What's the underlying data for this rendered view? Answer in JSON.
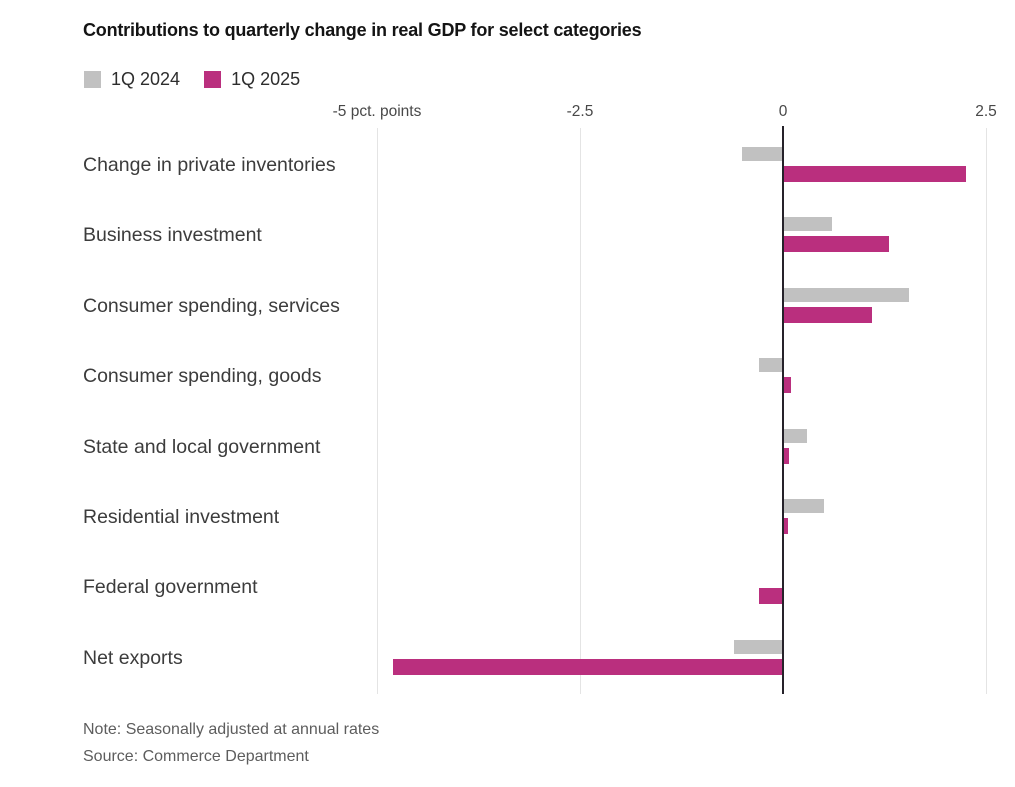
{
  "title": "Contributions to quarterly change in real GDP for select categories",
  "chart_data": {
    "type": "bar",
    "orientation": "horizontal",
    "title": "Contributions to quarterly change in real GDP for select categories",
    "xlabel": "pct. points",
    "ylabel": "",
    "categories": [
      "Change in private inventories",
      "Business investment",
      "Consumer spending, services",
      "Consumer spending, goods",
      "State and local government",
      "Residential investment",
      "Federal government",
      "Net exports"
    ],
    "series": [
      {
        "name": "1Q 2024",
        "color": "#c1c1c1",
        "values": [
          -0.5,
          0.6,
          1.55,
          -0.3,
          0.3,
          0.5,
          0,
          -0.6
        ]
      },
      {
        "name": "1Q 2025",
        "color": "#ba2f7e",
        "values": [
          2.25,
          1.3,
          1.1,
          0.1,
          0.08,
          0.06,
          -0.3,
          -4.8
        ]
      }
    ],
    "ticks": [
      {
        "value": -5,
        "label": "-5 pct. points"
      },
      {
        "value": -2.5,
        "label": "-2.5"
      },
      {
        "value": 0,
        "label": "0"
      },
      {
        "value": 2.5,
        "label": "2.5"
      }
    ],
    "xlim": [
      -5.6,
      2.85
    ],
    "grid": true,
    "legend_position": "top-left"
  },
  "notes": {
    "note": "Note: Seasonally adjusted at annual rates",
    "source": "Source: Commerce Department"
  }
}
